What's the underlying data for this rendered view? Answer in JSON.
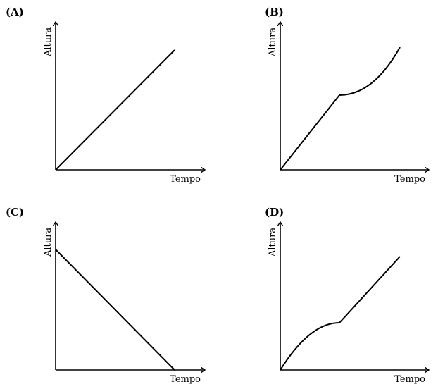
{
  "panels": [
    {
      "id": "A",
      "label": "(A)",
      "ylabel": "Altura",
      "xlabel": "Tempo",
      "shape": "linear-increasing"
    },
    {
      "id": "B",
      "label": "(B)",
      "ylabel": "Altura",
      "xlabel": "Tempo",
      "shape": "linear-then-convex"
    },
    {
      "id": "C",
      "label": "(C)",
      "ylabel": "Altura",
      "xlabel": "Tempo",
      "shape": "linear-decreasing"
    },
    {
      "id": "D",
      "label": "(D)",
      "ylabel": "Altura",
      "xlabel": "Tempo",
      "shape": "concave-then-linear"
    }
  ]
}
